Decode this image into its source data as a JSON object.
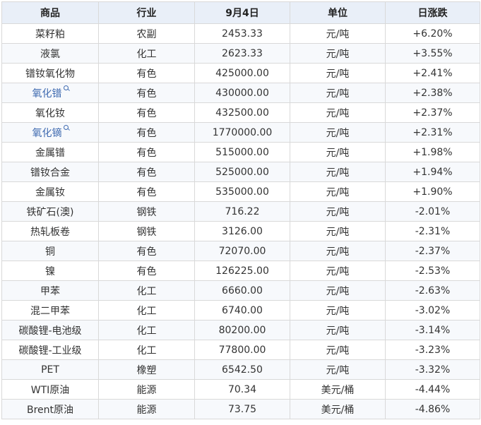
{
  "table": {
    "headers": [
      "商品",
      "行业",
      "9月4日",
      "单位",
      "日涨跌"
    ],
    "rows": [
      {
        "name": "菜籽粕",
        "industry": "农副",
        "price": "2453.33",
        "unit": "元/吨",
        "change": "+6.20%",
        "dir": "up",
        "link": false
      },
      {
        "name": "液氯",
        "industry": "化工",
        "price": "2623.33",
        "unit": "元/吨",
        "change": "+3.55%",
        "dir": "up",
        "link": false
      },
      {
        "name": "镨钕氧化物",
        "industry": "有色",
        "price": "425000.00",
        "unit": "元/吨",
        "change": "+2.41%",
        "dir": "up",
        "link": false
      },
      {
        "name": "氧化镨",
        "industry": "有色",
        "price": "430000.00",
        "unit": "元/吨",
        "change": "+2.38%",
        "dir": "up",
        "link": true
      },
      {
        "name": "氧化钕",
        "industry": "有色",
        "price": "432500.00",
        "unit": "元/吨",
        "change": "+2.37%",
        "dir": "up",
        "link": false
      },
      {
        "name": "氧化镝",
        "industry": "有色",
        "price": "1770000.00",
        "unit": "元/吨",
        "change": "+2.31%",
        "dir": "up",
        "link": true
      },
      {
        "name": "金属镨",
        "industry": "有色",
        "price": "515000.00",
        "unit": "元/吨",
        "change": "+1.98%",
        "dir": "up",
        "link": false
      },
      {
        "name": "镨钕合金",
        "industry": "有色",
        "price": "525000.00",
        "unit": "元/吨",
        "change": "+1.94%",
        "dir": "up",
        "link": false
      },
      {
        "name": "金属钕",
        "industry": "有色",
        "price": "535000.00",
        "unit": "元/吨",
        "change": "+1.90%",
        "dir": "up",
        "link": false
      },
      {
        "name": "铁矿石(澳)",
        "industry": "钢铁",
        "price": "716.22",
        "unit": "元/吨",
        "change": "-2.01%",
        "dir": "down",
        "link": false
      },
      {
        "name": "热轧板卷",
        "industry": "钢铁",
        "price": "3126.00",
        "unit": "元/吨",
        "change": "-2.31%",
        "dir": "down",
        "link": false
      },
      {
        "name": "铜",
        "industry": "有色",
        "price": "72070.00",
        "unit": "元/吨",
        "change": "-2.37%",
        "dir": "down",
        "link": false
      },
      {
        "name": "镍",
        "industry": "有色",
        "price": "126225.00",
        "unit": "元/吨",
        "change": "-2.53%",
        "dir": "down",
        "link": false
      },
      {
        "name": "甲苯",
        "industry": "化工",
        "price": "6660.00",
        "unit": "元/吨",
        "change": "-2.63%",
        "dir": "down",
        "link": false
      },
      {
        "name": "混二甲苯",
        "industry": "化工",
        "price": "6740.00",
        "unit": "元/吨",
        "change": "-3.02%",
        "dir": "down",
        "link": false
      },
      {
        "name": "碳酸锂-电池级",
        "industry": "化工",
        "price": "80200.00",
        "unit": "元/吨",
        "change": "-3.14%",
        "dir": "down",
        "link": false
      },
      {
        "name": "碳酸锂-工业级",
        "industry": "化工",
        "price": "77800.00",
        "unit": "元/吨",
        "change": "-3.23%",
        "dir": "down",
        "link": false
      },
      {
        "name": "PET",
        "industry": "橡塑",
        "price": "6542.50",
        "unit": "元/吨",
        "change": "-3.32%",
        "dir": "down",
        "link": false
      },
      {
        "name": "WTI原油",
        "industry": "能源",
        "price": "70.34",
        "unit": "美元/桶",
        "change": "-4.44%",
        "dir": "down",
        "link": false
      },
      {
        "name": "Brent原油",
        "industry": "能源",
        "price": "73.75",
        "unit": "美元/桶",
        "change": "-4.86%",
        "dir": "down",
        "link": false
      }
    ]
  },
  "colors": {
    "up": "#e03030",
    "down": "#1f9a3a",
    "link": "#3f6ab0",
    "header_bg": "#e9eff8"
  }
}
